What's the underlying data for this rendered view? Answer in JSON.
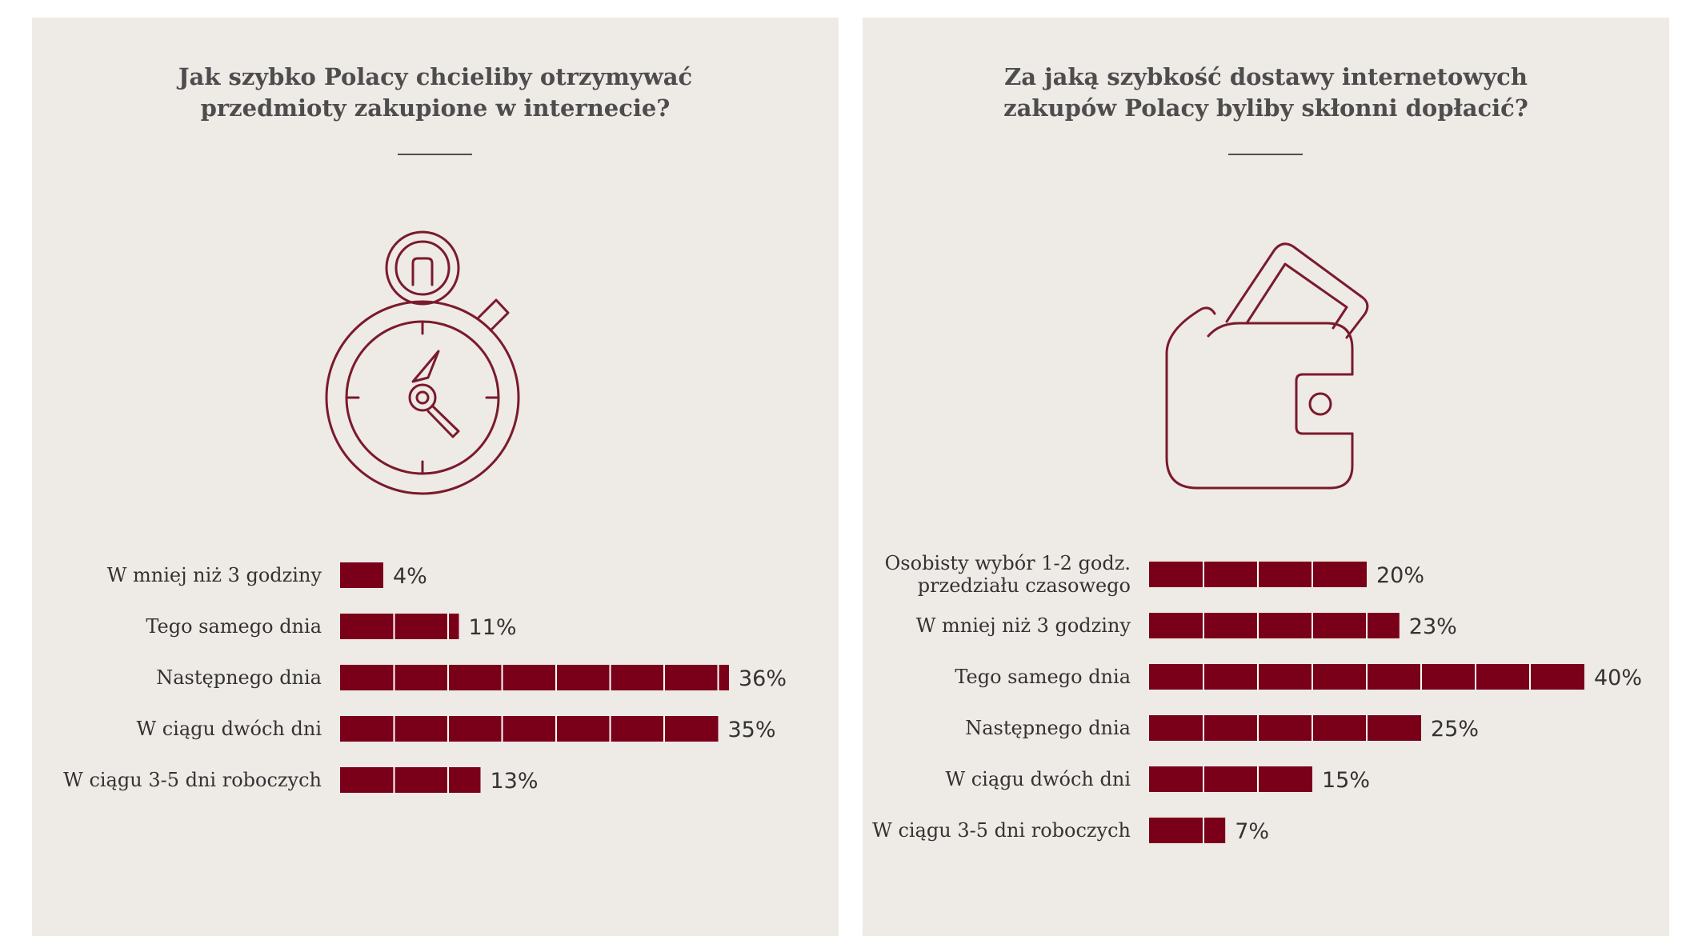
{
  "colors": {
    "panel_bg": "#eeeae6",
    "bar": "#7a0019",
    "text": "#333333",
    "icon_stroke": "#7a1a2c"
  },
  "panels": [
    {
      "title_lines": [
        "Jak szybko Polacy chcieliby otrzymywać",
        "przedmioty zakupione w internecie?"
      ],
      "icon": "stopwatch-icon"
    },
    {
      "title_lines": [
        "Za jaką szybkość dostawy internetowych",
        "zakupów Polacy byliby skłonni dopłacić?"
      ],
      "icon": "wallet-icon"
    }
  ],
  "chart_data": [
    {
      "type": "bar",
      "orientation": "horizontal",
      "title": "Jak szybko Polacy chcieliby otrzymywać przedmioty zakupione w internecie?",
      "categories": [
        [
          "W mniej niż 3 godziny"
        ],
        [
          "Tego samego dnia"
        ],
        [
          "Następnego dnia"
        ],
        [
          "W ciągu dwóch dni"
        ],
        [
          "W ciągu 3-5 dni roboczych"
        ]
      ],
      "values": [
        4,
        11,
        36,
        35,
        13
      ],
      "value_labels": [
        "4%",
        "11%",
        "36%",
        "35%",
        "13%"
      ],
      "segment_size": 5,
      "unit": "%"
    },
    {
      "type": "bar",
      "orientation": "horizontal",
      "title": "Za jaką szybkość dostawy internetowych zakupów Polacy byliby skłonni dopłacić?",
      "categories": [
        [
          "Osobisty wybór 1-2 godz.",
          "przedziału czasowego"
        ],
        [
          "W mniej niż 3 godziny"
        ],
        [
          "Tego samego dnia"
        ],
        [
          "Następnego dnia"
        ],
        [
          "W ciągu dwóch dni"
        ],
        [
          "W ciągu 3-5 dni roboczych"
        ]
      ],
      "values": [
        20,
        23,
        40,
        25,
        15,
        7
      ],
      "value_labels": [
        "20%",
        "23%",
        "40%",
        "25%",
        "15%",
        "7%"
      ],
      "segment_size": 5,
      "unit": "%"
    }
  ]
}
